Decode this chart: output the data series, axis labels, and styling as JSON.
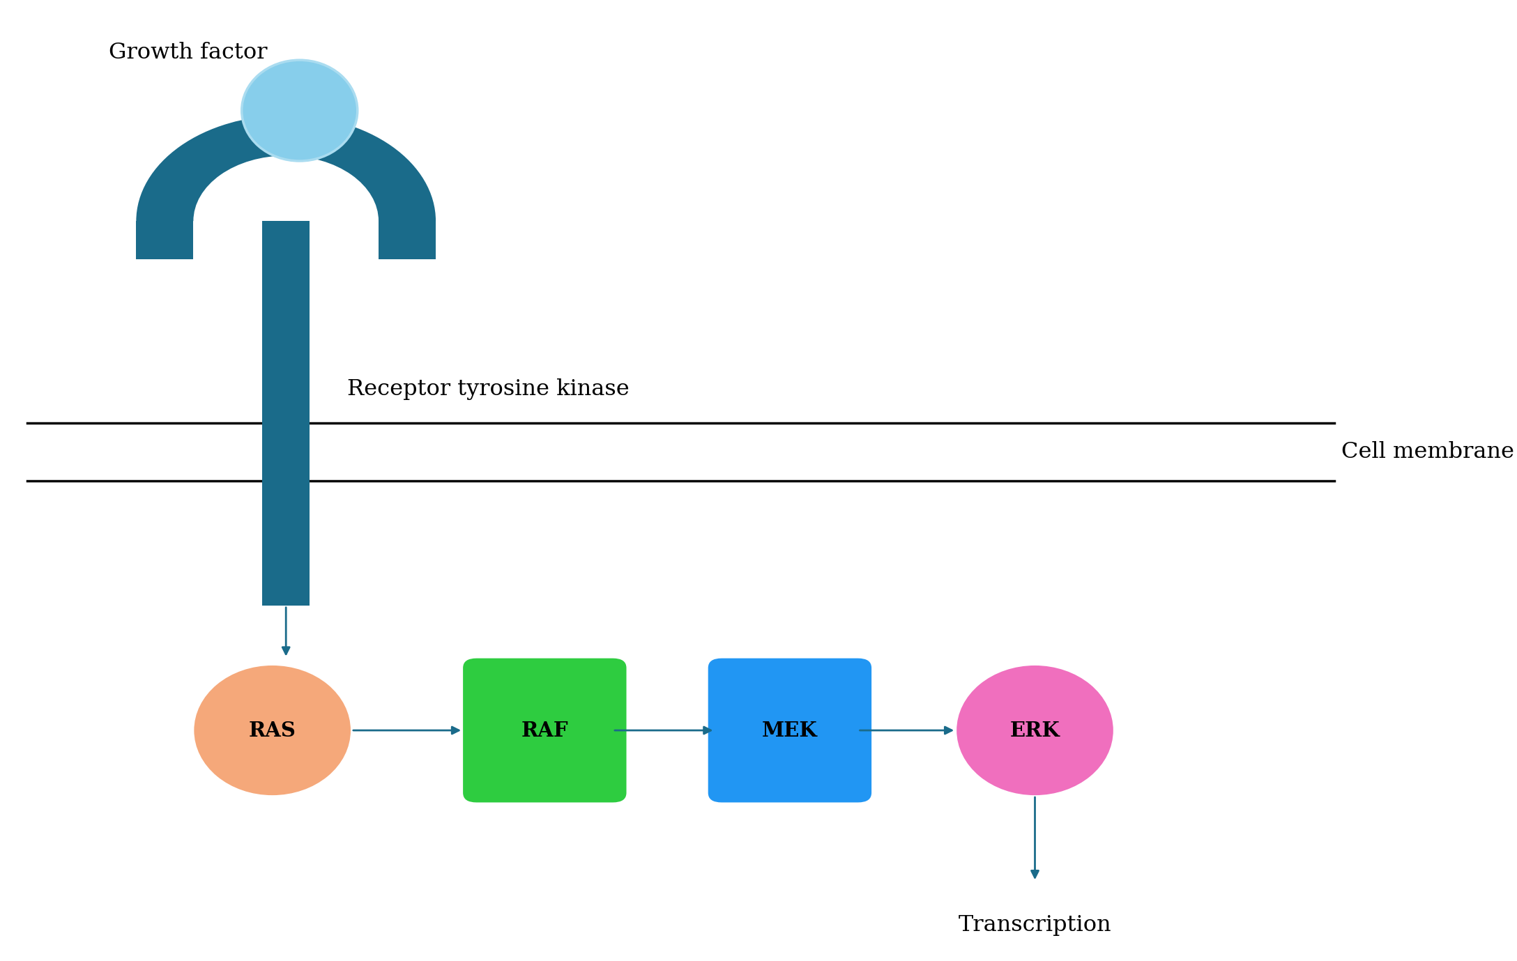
{
  "background_color": "#ffffff",
  "arrow_color": "#1a6b8a",
  "membrane_color": "#000000",
  "receptor_color": "#1a6b8a",
  "growth_factor_color": "#87ceeb",
  "growth_factor_outline": "#aadcf0",
  "ras_color": "#f5a87a",
  "raf_color": "#2ecc40",
  "mek_color": "#2196f3",
  "erk_color": "#f06fbe",
  "label_color": "#000000",
  "node_label_color": "#000000",
  "growth_factor_label": "Growth factor",
  "rtk_label": "Receptor tyrosine kinase",
  "membrane_label": "Cell membrane",
  "ras_label": "RAS",
  "raf_label": "RAF",
  "mek_label": "MEK",
  "erk_label": "ERK",
  "transcription_label": "Transcription",
  "figsize": [
    21.76,
    13.79
  ],
  "dpi": 100
}
